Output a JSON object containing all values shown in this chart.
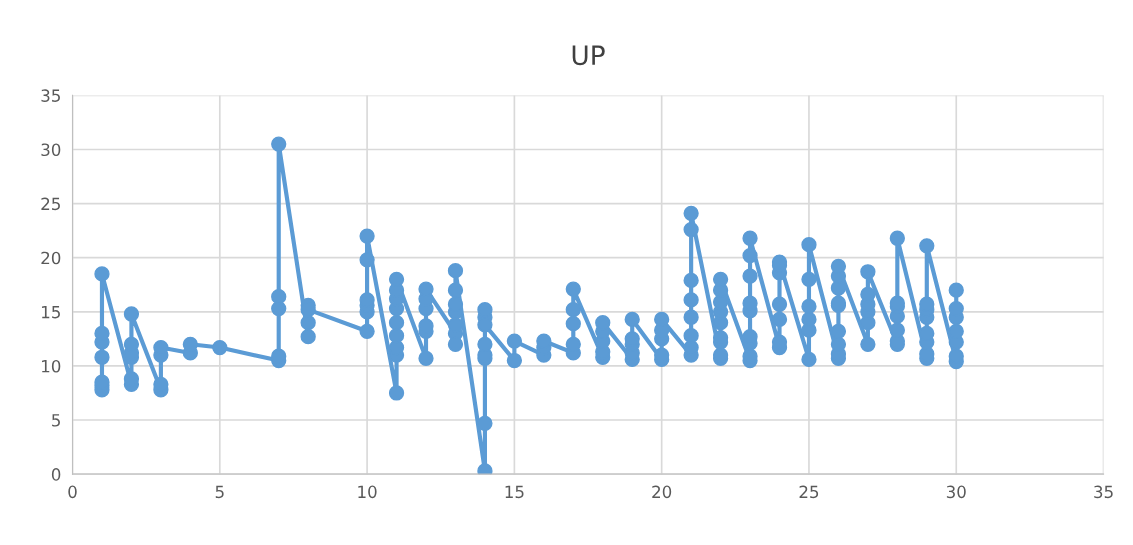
{
  "chart_data": {
    "type": "line",
    "title": "UP",
    "marker": "circle",
    "grid": true,
    "xlim": [
      0,
      35
    ],
    "xticks": [
      0,
      5,
      10,
      15,
      20,
      25,
      30,
      35
    ],
    "ylim": [
      0,
      35
    ],
    "yticks": [
      0,
      5,
      10,
      15,
      20,
      25,
      30,
      35
    ],
    "series": [
      {
        "color": "#5b9bd5",
        "x": [
          1,
          1,
          1,
          1,
          1,
          1,
          1,
          2,
          2,
          2,
          2,
          2,
          2,
          3,
          3,
          3,
          3,
          4,
          4,
          5,
          7,
          7,
          7,
          7,
          7,
          8,
          8,
          8,
          8,
          10,
          10,
          10,
          10,
          10,
          10,
          11,
          11,
          11,
          11,
          11,
          11,
          11,
          11,
          11,
          12,
          12,
          12,
          12,
          12,
          12,
          13,
          13,
          13,
          13,
          13,
          13,
          13,
          14,
          14,
          14,
          14,
          14,
          14,
          14,
          14,
          15,
          15,
          16,
          16,
          16,
          17,
          17,
          17,
          17,
          17,
          18,
          18,
          18,
          18,
          18,
          19,
          19,
          19,
          19,
          19,
          20,
          20,
          20,
          20,
          20,
          21,
          21,
          21,
          21,
          21,
          21,
          21,
          21,
          22,
          22,
          22,
          22,
          22,
          22,
          22,
          22,
          22,
          23,
          23,
          23,
          23,
          23,
          23,
          23,
          23,
          23,
          24,
          24,
          24,
          24,
          24,
          24,
          24,
          25,
          25,
          25,
          25,
          25,
          25,
          26,
          26,
          26,
          26,
          26,
          26,
          26,
          26,
          26,
          27,
          27,
          27,
          27,
          27,
          27,
          28,
          28,
          28,
          28,
          28,
          28,
          28,
          29,
          29,
          29,
          29,
          29,
          29,
          29,
          29,
          30,
          30,
          30,
          30,
          30,
          30,
          30
        ],
        "values": [
          7.8,
          8.2,
          8.5,
          10.8,
          12.2,
          13,
          18.5,
          8.3,
          8.8,
          10.8,
          11.2,
          12,
          14.8,
          7.8,
          8.3,
          11,
          11.7,
          11.2,
          12,
          11.7,
          10.5,
          10.9,
          15.3,
          16.4,
          30.5,
          12.7,
          14,
          15.6,
          15.2,
          13.2,
          15,
          15.6,
          16.1,
          19.8,
          22,
          7.5,
          11,
          11.7,
          12.8,
          14,
          15.3,
          16.2,
          17,
          18,
          10.7,
          13.2,
          13.7,
          15.3,
          16.2,
          17.1,
          13,
          12,
          13.8,
          15,
          15.7,
          17,
          18.8,
          0.3,
          4.7,
          10.7,
          11,
          12,
          14.5,
          15.2,
          13.8,
          10.5,
          12.3,
          11,
          11.7,
          12.3,
          11.2,
          12,
          13.9,
          15.2,
          17.1,
          10.8,
          11.3,
          12.3,
          13.2,
          14,
          10.6,
          11.2,
          12,
          12.5,
          14.3,
          10.6,
          11,
          12.5,
          13.3,
          14.3,
          11,
          11.7,
          12.8,
          14.5,
          16.1,
          17.9,
          22.6,
          24.1,
          10.7,
          11,
          12.2,
          12.6,
          14,
          15,
          15.9,
          17,
          18,
          10.5,
          10.9,
          12.1,
          12.7,
          15.1,
          15.8,
          18.3,
          20.2,
          21.8,
          11.7,
          12.2,
          14.3,
          15.7,
          18.6,
          19.3,
          19.6,
          10.6,
          13.3,
          14.3,
          15.5,
          18,
          21.2,
          10.7,
          11.1,
          12,
          13.2,
          15.6,
          15.8,
          17.2,
          18.3,
          19.2,
          12,
          14,
          15,
          15.7,
          16.6,
          18.7,
          12,
          12.3,
          13.3,
          14.6,
          15.5,
          15.8,
          21.8,
          10.7,
          11.1,
          12.2,
          13,
          14.5,
          15.2,
          15.7,
          21.1,
          10.4,
          10.9,
          12.2,
          13.2,
          14.5,
          15.3,
          17
        ]
      }
    ]
  }
}
